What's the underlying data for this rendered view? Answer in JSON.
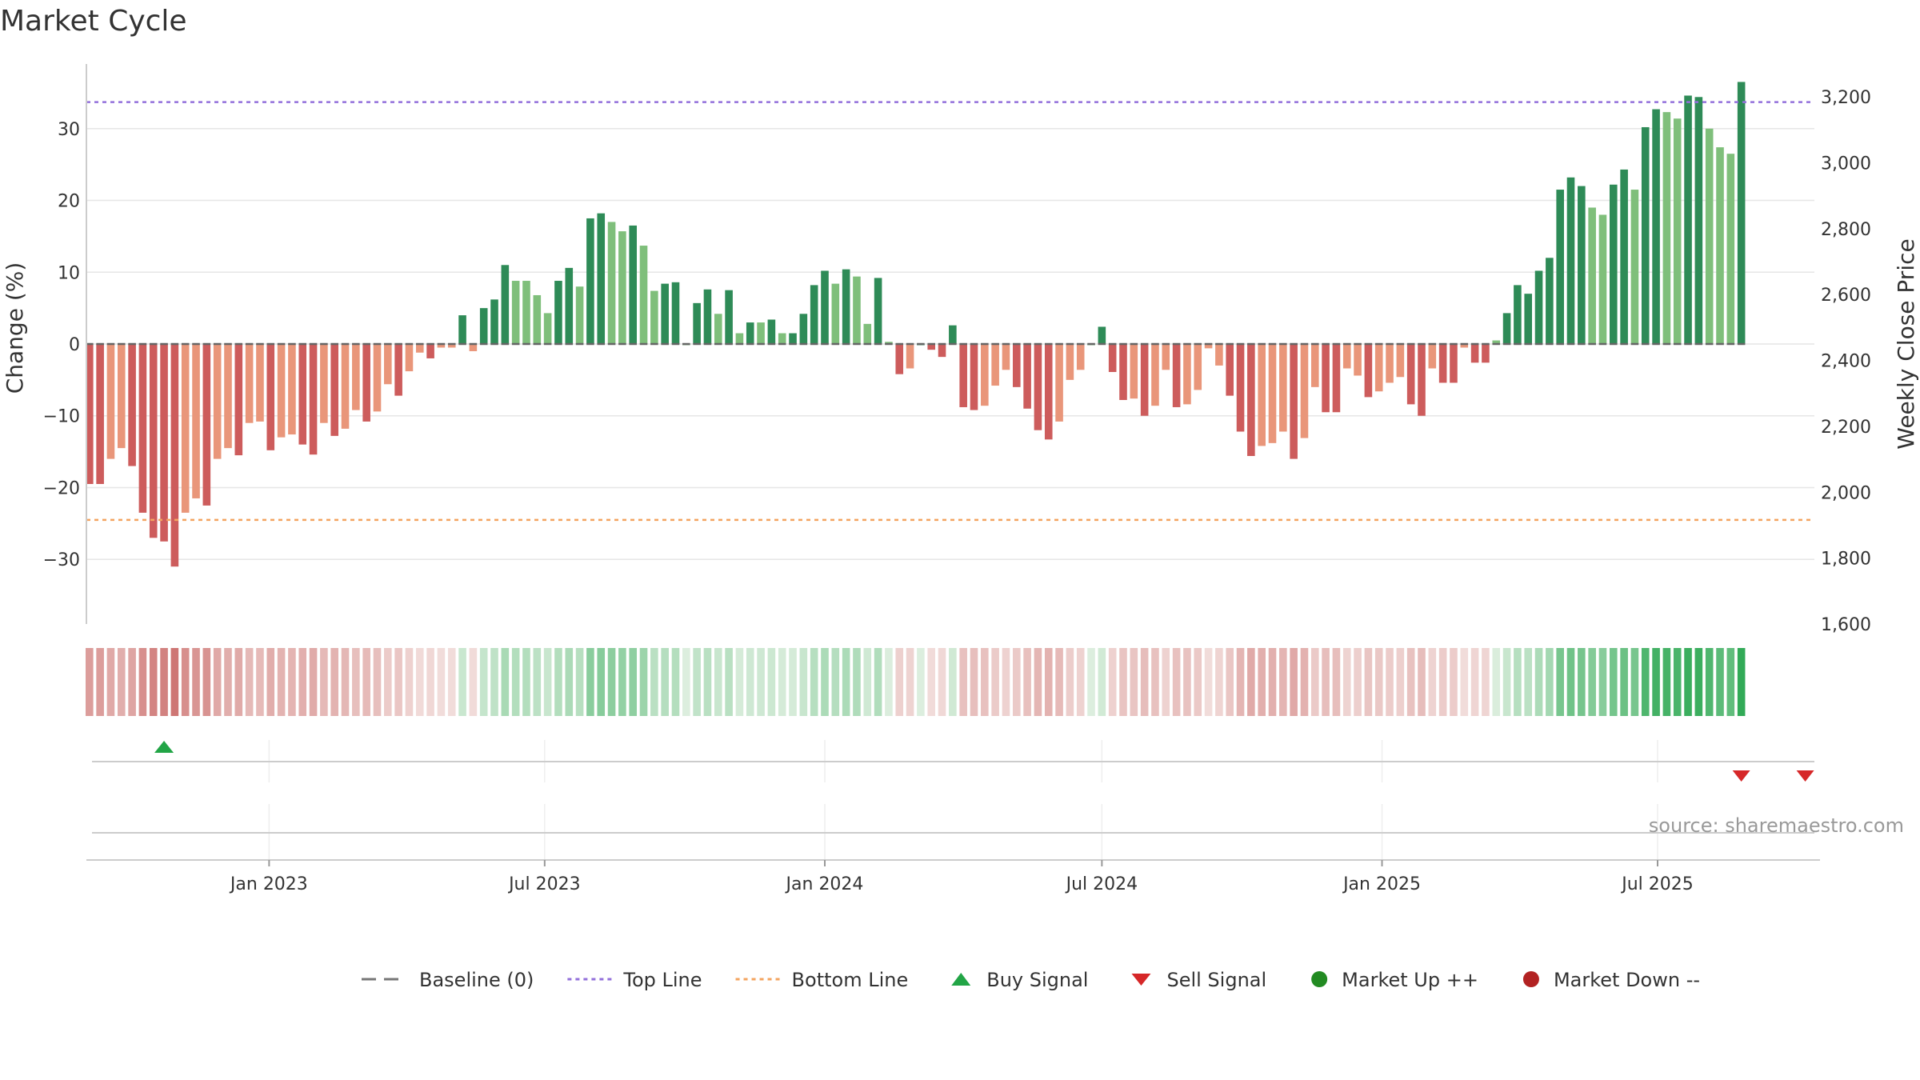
{
  "title": "Market Cycle",
  "source": "source: sharemaestro.com",
  "colors": {
    "up_dark": "#2e8b57",
    "up_light": "#7fbf7b",
    "down_dark": "#cd5c5c",
    "down_light": "#e9967a",
    "top_line": "#9370db",
    "bottom_line": "#f4a460",
    "buy": "#22a546",
    "sell": "#d62728",
    "market_up": "#228b22",
    "market_down": "#b22222"
  },
  "legend": [
    {
      "label": "Baseline (0)",
      "kind": "dash",
      "color": "#777777"
    },
    {
      "label": "Top Line",
      "kind": "dot",
      "color": "#9370db"
    },
    {
      "label": "Bottom Line",
      "kind": "dot",
      "color": "#f4a460"
    },
    {
      "label": "Buy Signal",
      "kind": "up-triangle",
      "color": "#22a546"
    },
    {
      "label": "Sell Signal",
      "kind": "down-triangle",
      "color": "#d62728"
    },
    {
      "label": "Market Up ++",
      "kind": "circle",
      "color": "#228b22"
    },
    {
      "label": "Market Down --",
      "kind": "circle",
      "color": "#b22222"
    }
  ],
  "chart_data": {
    "type": "bar",
    "title": "Market Cycle",
    "ylabel": "Change (%)",
    "y2label": "Weekly Close Price",
    "ylim": [
      -39,
      39
    ],
    "yticks": [
      -30,
      -20,
      -10,
      0,
      10,
      20,
      30
    ],
    "ytick_labels": [
      "−30",
      "−20",
      "−10",
      "0",
      "10",
      "20",
      "30"
    ],
    "y2lim": [
      1600,
      3300
    ],
    "y2ticks": [
      1600,
      1800,
      2000,
      2200,
      2400,
      2600,
      2800,
      3000,
      3200
    ],
    "y2tick_labels": [
      "1,600",
      "1,800",
      "2,000",
      "2,200",
      "2,400",
      "2,600",
      "2,800",
      "3,000",
      "3,200"
    ],
    "top_line": 33.7,
    "bottom_line": -24.5,
    "x_start": "2022-09-05",
    "x_range": [
      "2022-09-03",
      "2025-10-12"
    ],
    "xticks": [
      "2023-01-01",
      "2023-07-01",
      "2024-01-01",
      "2024-07-01",
      "2025-01-01",
      "2025-07-01"
    ],
    "xtick_labels": [
      "Jan 2023",
      "Jul 2023",
      "Jan 2024",
      "Jul 2024",
      "Jan 2025",
      "Jul 2025"
    ],
    "grid": true,
    "legend_position": "bottom",
    "values": [
      -19.5,
      -19.5,
      -16,
      -14.5,
      -17,
      -23.5,
      -27,
      -27.5,
      -31,
      -23.5,
      -21.5,
      -22.5,
      -16,
      -14.5,
      -15.5,
      -11,
      -10.8,
      -14.8,
      -13,
      -12.6,
      -14,
      -15.4,
      -11,
      -12.8,
      -11.8,
      -9.2,
      -10.8,
      -9.4,
      -5.6,
      -7.2,
      -3.8,
      -1.2,
      -2,
      -0.5,
      -0.5,
      4,
      -1,
      5,
      6.2,
      11,
      8.8,
      8.8,
      6.8,
      4.3,
      8.8,
      10.6,
      8,
      17.5,
      18.2,
      17,
      15.7,
      16.5,
      13.7,
      7.4,
      8.4,
      8.6,
      0,
      5.7,
      7.6,
      4.2,
      7.5,
      1.5,
      3,
      3,
      3.4,
      1.5,
      1.5,
      4.2,
      8.2,
      10.2,
      8.4,
      10.4,
      9.4,
      2.8,
      9.2,
      0.3,
      -4.2,
      -3.4,
      0,
      -0.8,
      -1.8,
      2.6,
      -8.8,
      -9.2,
      -8.6,
      -5.8,
      -3.6,
      -6,
      -9,
      -12,
      -13.3,
      -10.8,
      -5,
      -3.6,
      0,
      2.4,
      -3.9,
      -7.8,
      -7.6,
      -10,
      -8.6,
      -3.6,
      -8.8,
      -8.4,
      -6.4,
      -0.6,
      -3,
      -7.2,
      -12.2,
      -15.6,
      -14.2,
      -13.8,
      -12.2,
      -16,
      -13.1,
      -6,
      -9.5,
      -9.5,
      -3.4,
      -4.4,
      -7.4,
      -6.6,
      -5.4,
      -4.6,
      -8.4,
      -10,
      -3.4,
      -5.4,
      -5.4,
      -0.5,
      -2.6,
      -2.6,
      0.5,
      4.3,
      8.2,
      7,
      10.2,
      12,
      21.5,
      23.2,
      22,
      19,
      18,
      22.2,
      24.3,
      21.5,
      30.2,
      32.7,
      32.3,
      31.4,
      34.6,
      34.4,
      30,
      27.4,
      26.5,
      36.5
    ],
    "dark_shade": [
      1,
      1,
      0,
      0,
      1,
      1,
      1,
      1,
      1,
      0,
      0,
      1,
      0,
      0,
      1,
      0,
      0,
      1,
      0,
      0,
      1,
      1,
      0,
      1,
      0,
      0,
      1,
      0,
      0,
      1,
      0,
      0,
      1,
      0,
      0,
      1,
      0,
      1,
      1,
      1,
      0,
      0,
      0,
      0,
      1,
      1,
      0,
      1,
      1,
      0,
      0,
      1,
      0,
      0,
      1,
      1,
      0,
      1,
      1,
      0,
      1,
      0,
      1,
      0,
      1,
      0,
      1,
      1,
      1,
      1,
      0,
      1,
      0,
      0,
      1,
      0,
      1,
      0,
      1,
      1,
      1,
      1,
      1,
      1,
      0,
      0,
      0,
      1,
      1,
      1,
      1,
      0,
      0,
      0,
      0,
      1,
      1,
      1,
      0,
      1,
      0,
      0,
      1,
      0,
      0,
      0,
      0,
      1,
      1,
      1,
      0,
      0,
      0,
      1,
      0,
      0,
      1,
      1,
      0,
      0,
      1,
      0,
      0,
      0,
      1,
      1,
      0,
      1,
      1,
      0,
      1,
      1,
      0,
      1,
      1,
      1,
      1,
      1,
      1,
      1,
      1,
      0,
      0,
      1,
      1,
      0,
      1,
      1,
      0,
      0,
      1,
      1,
      0,
      0,
      0,
      1
    ],
    "strip": {
      "type": "heatmap",
      "description_scale": "same weekly change values mapped to red (down) / green (up) intensity"
    },
    "buy_signals": [
      "2022-10-24"
    ],
    "sell_signals": [
      "2025-08-25",
      "2025-10-06"
    ],
    "market_up_markers": [],
    "market_down_markers": []
  }
}
